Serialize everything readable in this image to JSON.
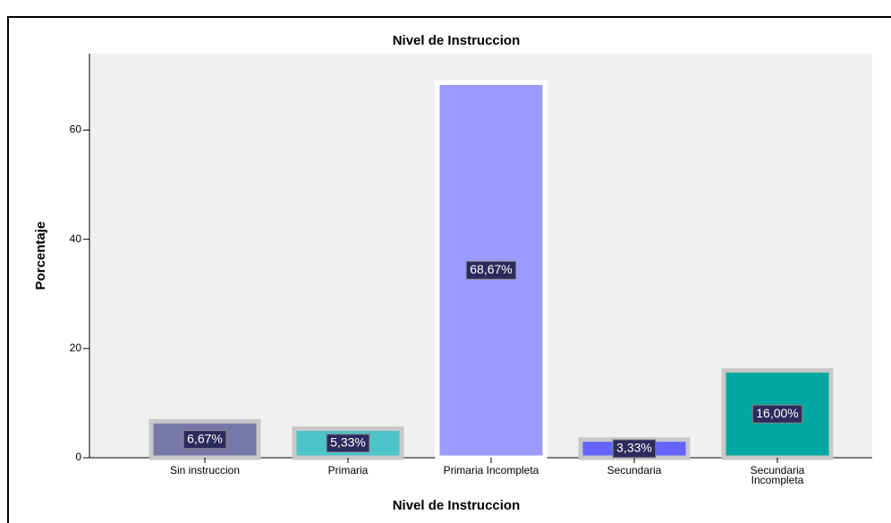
{
  "chart_data": {
    "type": "bar",
    "title": "Nivel de Instruccion",
    "x_label": "Nivel de Instruccion",
    "y_label": "Porcentaje",
    "categories": [
      "Sin instruccion",
      "Primaria",
      "Primaria Incompleta",
      "Secundaria",
      "Secundaria\nIncompleta"
    ],
    "values": [
      6.67,
      5.33,
      68.67,
      3.33,
      16.0
    ],
    "value_labels": [
      "6,67%",
      "5,33%",
      "68,67%",
      "3,33%",
      "16,00%"
    ],
    "colors": [
      "#7878a8",
      "#4cc4c8",
      "#9b9bff",
      "#6464ff",
      "#00a8a0"
    ],
    "ylim": [
      0,
      74
    ],
    "yticks": [
      0,
      20,
      40,
      60
    ],
    "grid": false
  }
}
